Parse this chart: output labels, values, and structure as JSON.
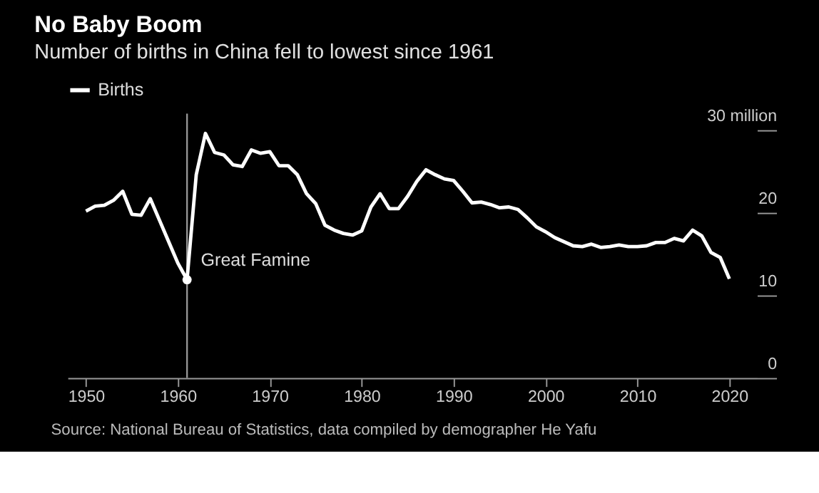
{
  "chart_data": {
    "type": "line",
    "title": "No Baby Boom",
    "subtitle": "Number of births in China fell to lowest since 1961",
    "x": [
      1950,
      1951,
      1952,
      1953,
      1954,
      1955,
      1956,
      1957,
      1958,
      1959,
      1960,
      1961,
      1962,
      1963,
      1964,
      1965,
      1966,
      1967,
      1968,
      1969,
      1970,
      1971,
      1972,
      1973,
      1974,
      1975,
      1976,
      1977,
      1978,
      1979,
      1980,
      1981,
      1982,
      1983,
      1984,
      1985,
      1986,
      1987,
      1988,
      1989,
      1990,
      1991,
      1992,
      1993,
      1994,
      1995,
      1996,
      1997,
      1998,
      1999,
      2000,
      2001,
      2002,
      2003,
      2004,
      2005,
      2006,
      2007,
      2008,
      2009,
      2010,
      2011,
      2012,
      2013,
      2014,
      2015,
      2016,
      2017,
      2018,
      2019,
      2020
    ],
    "series": [
      {
        "name": "Births",
        "color": "#ffffff",
        "values": [
          20.2,
          20.8,
          20.9,
          21.5,
          22.6,
          19.8,
          19.7,
          21.7,
          19.1,
          16.5,
          13.9,
          11.9,
          24.6,
          29.6,
          27.3,
          27.0,
          25.8,
          25.6,
          27.6,
          27.2,
          27.4,
          25.7,
          25.7,
          24.6,
          22.3,
          21.1,
          18.5,
          17.9,
          17.5,
          17.3,
          17.8,
          20.7,
          22.3,
          20.5,
          20.5,
          22.0,
          23.8,
          25.2,
          24.6,
          24.1,
          23.9,
          22.6,
          21.2,
          21.3,
          21.0,
          20.6,
          20.7,
          20.4,
          19.4,
          18.3,
          17.7,
          17.0,
          16.5,
          16.0,
          15.9,
          16.2,
          15.8,
          15.9,
          16.1,
          15.9,
          15.9,
          16.0,
          16.4,
          16.4,
          16.9,
          16.6,
          17.9,
          17.2,
          15.2,
          14.6,
          12.0
        ]
      }
    ],
    "xlim": [
      1948,
      2023
    ],
    "xticks": [
      1950,
      1960,
      1970,
      1980,
      1990,
      2000,
      2010,
      2020
    ],
    "ylim": [
      0,
      30
    ],
    "yticks": [
      0,
      10,
      20,
      {
        "value": 30,
        "label": "30 million"
      }
    ],
    "ref_lines": [
      {
        "axis": "x",
        "value": 1961,
        "color": "#999999"
      }
    ],
    "annotations": [
      {
        "text": "Great Famine",
        "x": 1961,
        "y": 11.9
      },
      "Source: National Bureau of Statistics, data compiled by demographer He Yafu"
    ],
    "legend": "top left",
    "grid": false,
    "marker": "none",
    "line_style": "solid"
  }
}
